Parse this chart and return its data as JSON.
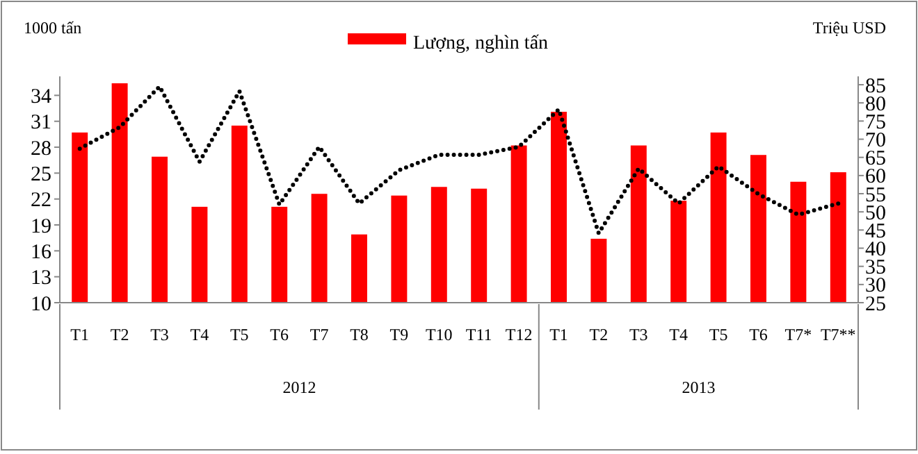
{
  "chart_data": {
    "type": "bar",
    "ylabel": "1000 tấn",
    "y2label": "Triệu USD",
    "categories": [
      "T1",
      "T2",
      "T3",
      "T4",
      "T5",
      "T6",
      "T7",
      "T8",
      "T9",
      "T10",
      "T11",
      "T12",
      "T1",
      "T2",
      "T3",
      "T4",
      "T5",
      "T6",
      "T7*",
      "T7**"
    ],
    "series": [
      {
        "name": "Lượng, nghìn tấn",
        "color": "#ff0000",
        "values": [
          29.7,
          35.4,
          26.9,
          21.1,
          30.5,
          21.1,
          22.6,
          17.9,
          22.4,
          23.4,
          23.2,
          28.2,
          32.1,
          17.4,
          28.2,
          21.8,
          29.7,
          27.1,
          24.0,
          25.1
        ]
      },
      {
        "type": "line",
        "axis": "y2",
        "color": "#000000",
        "line_style": "dotted",
        "values": [
          67.4,
          73.3,
          84.5,
          63.8,
          83.2,
          52,
          67.9,
          52.3,
          61.5,
          65.7,
          65.7,
          67.9,
          78.2,
          44.1,
          61.9,
          52.3,
          62.5,
          54.9,
          49.2,
          52.3
        ]
      }
    ],
    "ylim": [
      10,
      36.2
    ],
    "yticks": [
      10,
      13,
      16,
      19,
      22,
      25,
      28,
      31,
      34
    ],
    "y2lim": [
      25,
      87.3
    ],
    "y2ticks": [
      25,
      30,
      35,
      40,
      45,
      50,
      55,
      60,
      65,
      70,
      75,
      80,
      85
    ],
    "annotations": [
      "2012",
      "2013"
    ],
    "legend": "top",
    "grid": false
  }
}
